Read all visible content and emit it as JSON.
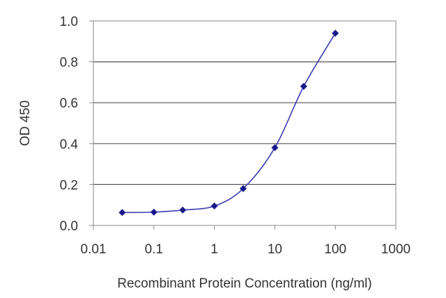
{
  "chart_data": {
    "type": "line",
    "xlabel": "Recombinant Protein Concentration (ng/ml)",
    "ylabel": "OD 450",
    "xscale": "log",
    "xlim": [
      0.01,
      1000
    ],
    "ylim": [
      0.0,
      1.0
    ],
    "xticks": [
      "0.01",
      "0.1",
      "1",
      "10",
      "100",
      "1000"
    ],
    "yticks": [
      "0.0",
      "0.2",
      "0.4",
      "0.6",
      "0.8",
      "1.0"
    ],
    "grid": "horizontal",
    "series": [
      {
        "x": [
          0.03,
          0.1,
          0.3,
          1,
          3,
          10,
          30,
          100
        ],
        "y": [
          0.063,
          0.065,
          0.075,
          0.095,
          0.18,
          0.38,
          0.68,
          0.94
        ]
      }
    ],
    "colors": {
      "line": "#3a3ab0",
      "marker": "#1a1a8c",
      "grid": "#555555",
      "axis": "#888888"
    }
  }
}
